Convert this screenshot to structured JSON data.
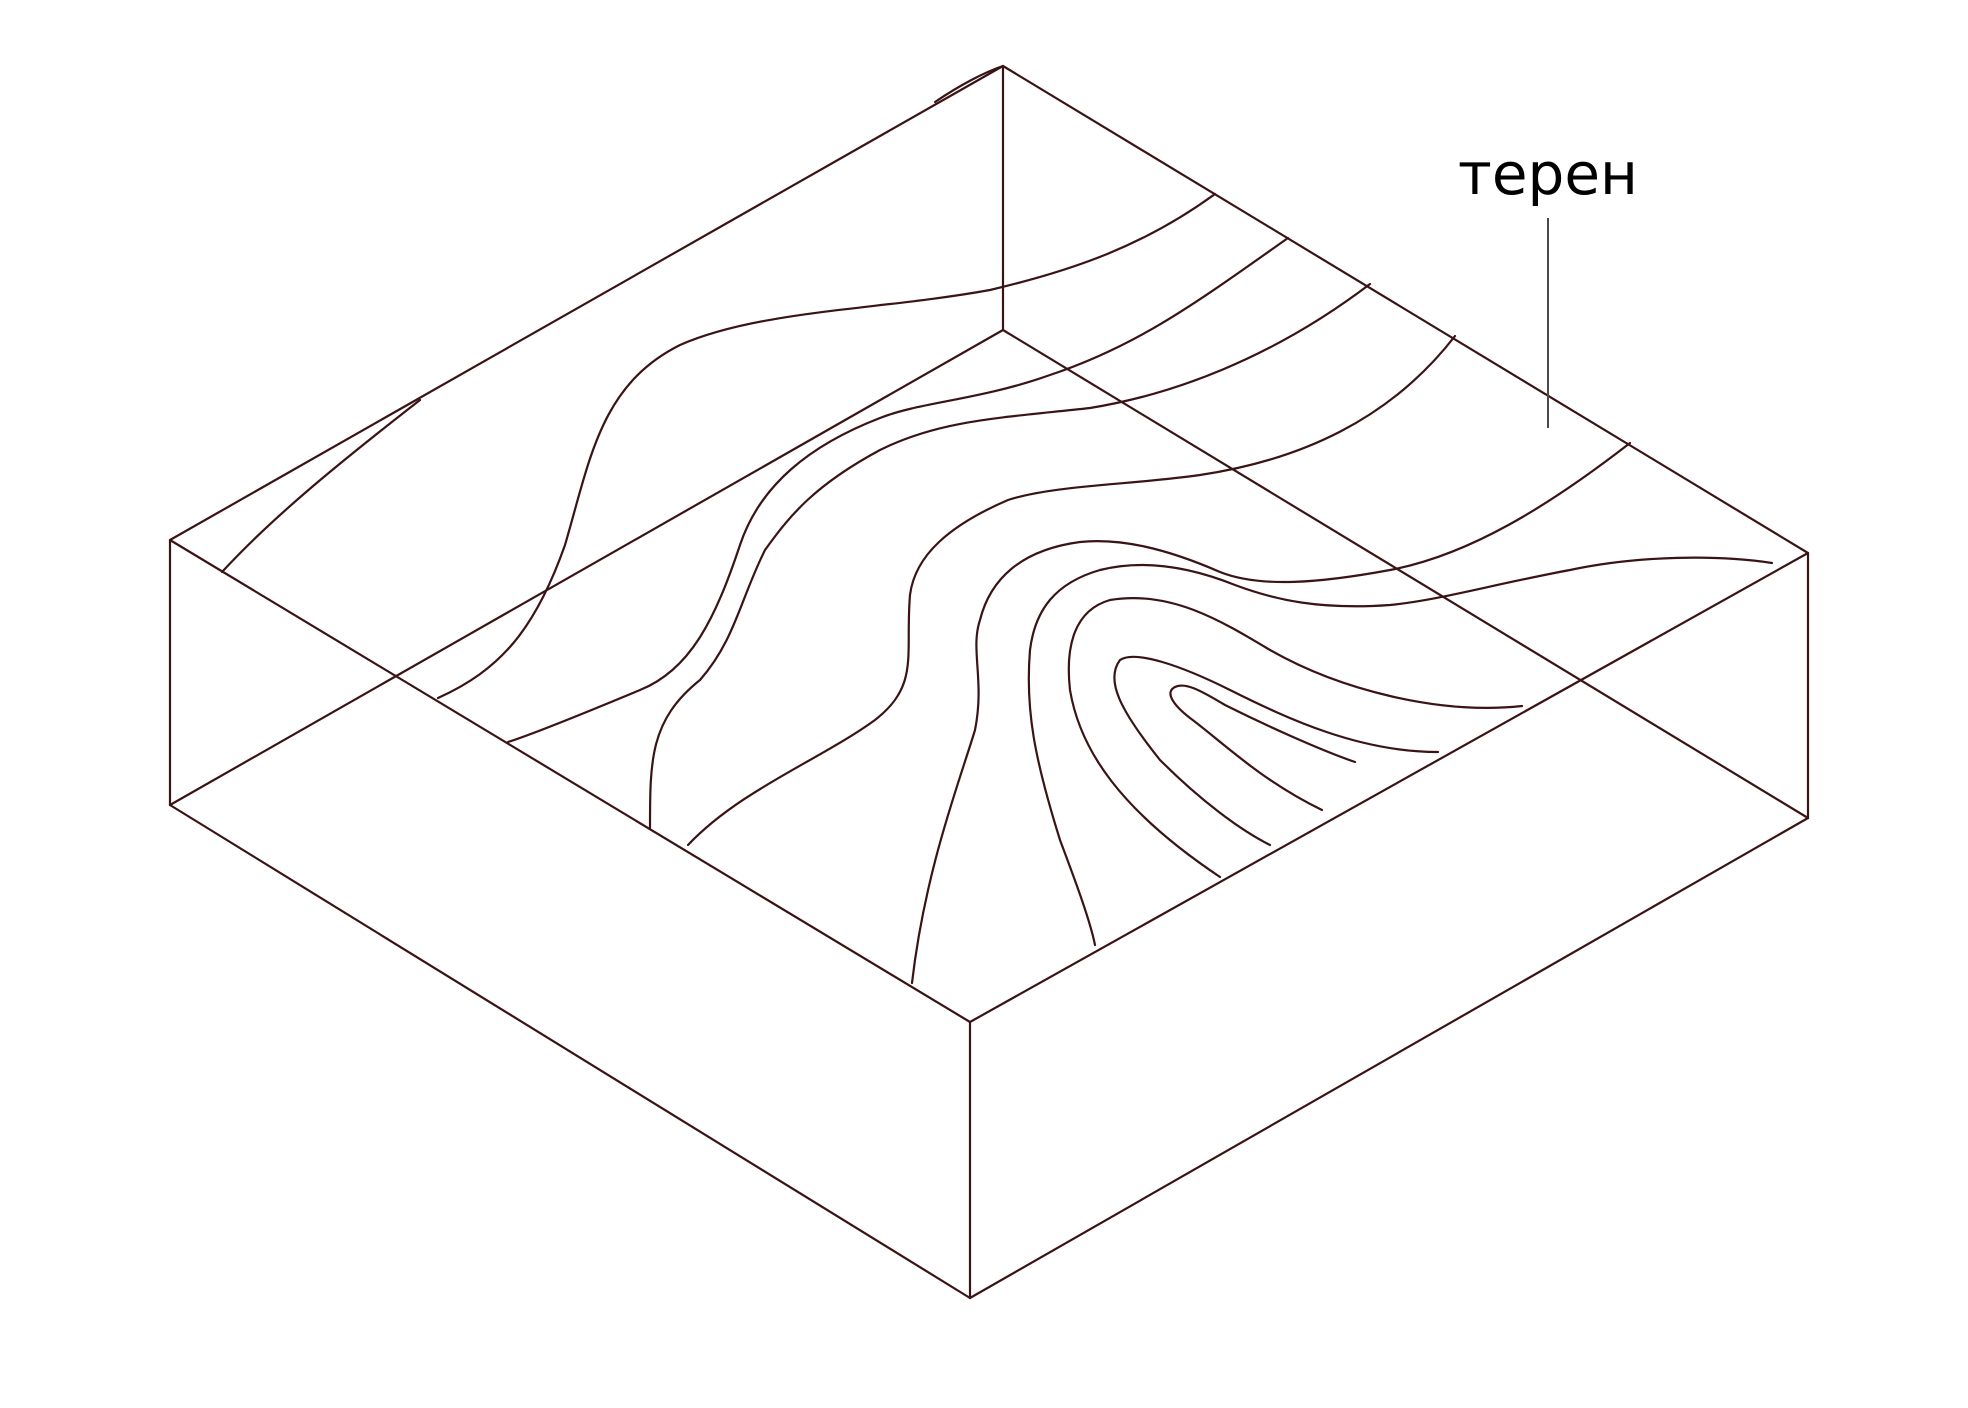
{
  "diagram": {
    "label": "терен",
    "line_color": "#3a1414"
  }
}
